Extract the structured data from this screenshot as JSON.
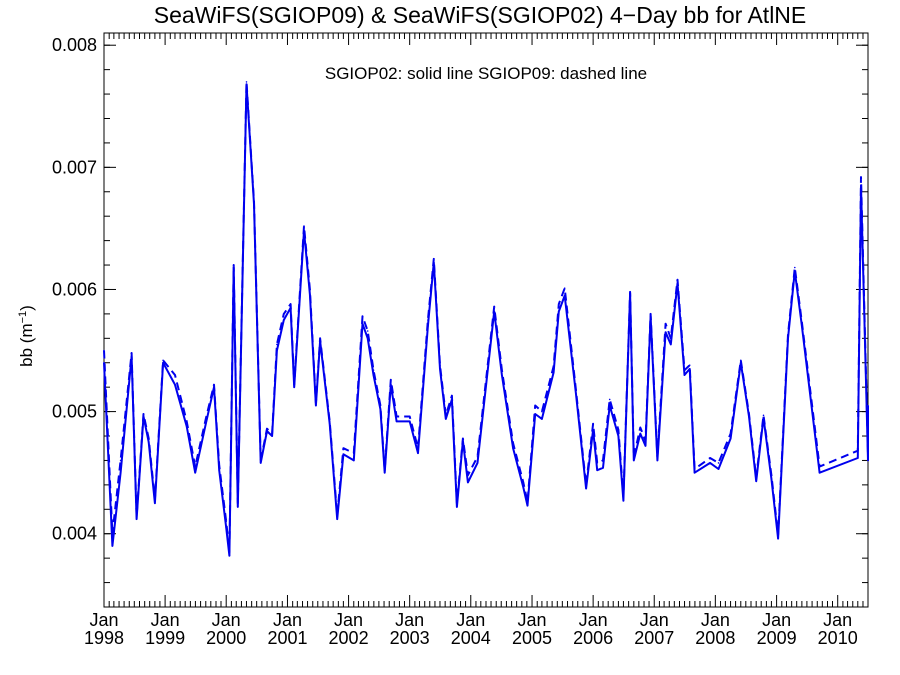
{
  "chart_data": {
    "type": "line",
    "title": "SeaWiFS(SGIOP09) & SeaWiFS(SGIOP02) 4−Day bb for AtlNE",
    "annotation": "SGIOP02: solid line   SGIOP09: dashed line",
    "ylabel_main": "bb (m",
    "ylabel_sup": "−1",
    "ylabel_close": ")",
    "xlim": [
      "1998-01-01",
      "2010-07-01"
    ],
    "ylim": [
      0.0034,
      0.0081
    ],
    "y_ticks": [
      0.004,
      0.005,
      0.006,
      0.007,
      0.008
    ],
    "y_tick_labels": [
      "0.004",
      "0.005",
      "0.006",
      "0.007",
      "0.008"
    ],
    "x_ticks": [
      {
        "date": "1998-01-01",
        "month": "Jan",
        "year": "1998"
      },
      {
        "date": "1999-01-01",
        "month": "Jan",
        "year": "1999"
      },
      {
        "date": "2000-01-01",
        "month": "Jan",
        "year": "2000"
      },
      {
        "date": "2001-01-01",
        "month": "Jan",
        "year": "2001"
      },
      {
        "date": "2002-01-01",
        "month": "Jan",
        "year": "2002"
      },
      {
        "date": "2003-01-01",
        "month": "Jan",
        "year": "2003"
      },
      {
        "date": "2004-01-01",
        "month": "Jan",
        "year": "2004"
      },
      {
        "date": "2005-01-01",
        "month": "Jan",
        "year": "2005"
      },
      {
        "date": "2006-01-01",
        "month": "Jan",
        "year": "2006"
      },
      {
        "date": "2007-01-01",
        "month": "Jan",
        "year": "2007"
      },
      {
        "date": "2008-01-01",
        "month": "Jan",
        "year": "2008"
      },
      {
        "date": "2009-01-01",
        "month": "Jan",
        "year": "2009"
      },
      {
        "date": "2010-01-01",
        "month": "Jan",
        "year": "2010"
      }
    ],
    "line_color": "#0000ee",
    "series": [
      {
        "name": "SGIOP02",
        "style": "solid",
        "points": [
          [
            "1998-01-01",
            0.0054
          ],
          [
            "1998-02-20",
            0.0039
          ],
          [
            "1998-04-10",
            0.0045
          ],
          [
            "1998-06-15",
            0.00545
          ],
          [
            "1998-07-15",
            0.00412
          ],
          [
            "1998-08-25",
            0.00496
          ],
          [
            "1998-09-25",
            0.00475
          ],
          [
            "1998-11-01",
            0.00425
          ],
          [
            "1998-12-20",
            0.0054
          ],
          [
            "1999-03-01",
            0.00522
          ],
          [
            "1999-05-10",
            0.00488
          ],
          [
            "1999-06-30",
            0.0045
          ],
          [
            "1999-09-01",
            0.0049
          ],
          [
            "1999-10-20",
            0.0052
          ],
          [
            "1999-11-20",
            0.00452
          ],
          [
            "2000-01-01",
            0.00405
          ],
          [
            "2000-01-20",
            0.00382
          ],
          [
            "2000-02-15",
            0.00618
          ],
          [
            "2000-03-10",
            0.00422
          ],
          [
            "2000-05-01",
            0.00768
          ],
          [
            "2000-06-15",
            0.0067
          ],
          [
            "2000-07-25",
            0.00458
          ],
          [
            "2000-09-01",
            0.00484
          ],
          [
            "2000-10-01",
            0.0048
          ],
          [
            "2000-10-30",
            0.0055
          ],
          [
            "2000-12-10",
            0.00575
          ],
          [
            "2001-01-20",
            0.00585
          ],
          [
            "2001-02-10",
            0.0052
          ],
          [
            "2001-04-10",
            0.00648
          ],
          [
            "2001-05-15",
            0.00596
          ],
          [
            "2001-06-20",
            0.00505
          ],
          [
            "2001-07-15",
            0.00558
          ],
          [
            "2001-09-10",
            0.0049
          ],
          [
            "2001-10-25",
            0.00412
          ],
          [
            "2001-12-01",
            0.00465
          ],
          [
            "2002-02-01",
            0.0046
          ],
          [
            "2002-03-25",
            0.00572
          ],
          [
            "2002-04-25",
            0.0056
          ],
          [
            "2002-05-30",
            0.0053
          ],
          [
            "2002-07-10",
            0.00502
          ],
          [
            "2002-08-05",
            0.0045
          ],
          [
            "2002-09-10",
            0.00522
          ],
          [
            "2002-10-15",
            0.00492
          ],
          [
            "2003-01-01",
            0.00492
          ],
          [
            "2003-02-20",
            0.00466
          ],
          [
            "2003-04-20",
            0.0057
          ],
          [
            "2003-05-25",
            0.00622
          ],
          [
            "2003-07-01",
            0.00535
          ],
          [
            "2003-08-05",
            0.00494
          ],
          [
            "2003-09-10",
            0.0051
          ],
          [
            "2003-10-10",
            0.00422
          ],
          [
            "2003-11-15",
            0.00476
          ],
          [
            "2003-12-15",
            0.00442
          ],
          [
            "2004-02-10",
            0.00458
          ],
          [
            "2004-05-20",
            0.00582
          ],
          [
            "2004-07-05",
            0.0053
          ],
          [
            "2004-09-10",
            0.0047
          ],
          [
            "2004-11-10",
            0.00438
          ],
          [
            "2004-12-05",
            0.00423
          ],
          [
            "2005-01-20",
            0.00498
          ],
          [
            "2005-03-01",
            0.00494
          ],
          [
            "2005-05-10",
            0.00532
          ],
          [
            "2005-06-10",
            0.00582
          ],
          [
            "2005-07-15",
            0.00595
          ],
          [
            "2005-09-20",
            0.00515
          ],
          [
            "2005-11-20",
            0.00437
          ],
          [
            "2006-01-01",
            0.00485
          ],
          [
            "2006-01-25",
            0.00452
          ],
          [
            "2006-03-01",
            0.00454
          ],
          [
            "2006-04-10",
            0.00505
          ],
          [
            "2006-06-01",
            0.0048
          ],
          [
            "2006-07-01",
            0.00427
          ],
          [
            "2006-08-10",
            0.00597
          ],
          [
            "2006-09-01",
            0.0046
          ],
          [
            "2006-10-10",
            0.00482
          ],
          [
            "2006-11-10",
            0.00472
          ],
          [
            "2006-12-10",
            0.00578
          ],
          [
            "2007-01-20",
            0.0046
          ],
          [
            "2007-03-10",
            0.00565
          ],
          [
            "2007-04-10",
            0.00555
          ],
          [
            "2007-05-20",
            0.00605
          ],
          [
            "2007-07-01",
            0.0053
          ],
          [
            "2007-08-01",
            0.00535
          ],
          [
            "2007-08-30",
            0.0045
          ],
          [
            "2007-12-01",
            0.00458
          ],
          [
            "2008-01-20",
            0.00453
          ],
          [
            "2008-04-01",
            0.00478
          ],
          [
            "2008-06-01",
            0.0054
          ],
          [
            "2008-07-20",
            0.00496
          ],
          [
            "2008-09-01",
            0.00443
          ],
          [
            "2008-10-15",
            0.00495
          ],
          [
            "2008-12-01",
            0.00445
          ],
          [
            "2009-01-10",
            0.00396
          ],
          [
            "2009-03-10",
            0.0056
          ],
          [
            "2009-04-20",
            0.00615
          ],
          [
            "2009-06-01",
            0.0057
          ],
          [
            "2009-09-15",
            0.0045
          ],
          [
            "2010-05-01",
            0.00462
          ],
          [
            "2010-05-20",
            0.00685
          ],
          [
            "2010-07-01",
            0.0046
          ],
          [
            "2010-08-01",
            0.005
          ]
        ]
      },
      {
        "name": "SGIOP09",
        "style": "dashed",
        "points": [
          [
            "1998-01-01",
            0.0055
          ],
          [
            "1998-02-20",
            0.004
          ],
          [
            "1998-04-10",
            0.0046
          ],
          [
            "1998-06-15",
            0.00548
          ],
          [
            "1998-07-15",
            0.00414
          ],
          [
            "1998-08-25",
            0.00498
          ],
          [
            "1998-09-25",
            0.00478
          ],
          [
            "1998-11-01",
            0.00428
          ],
          [
            "1998-12-20",
            0.00542
          ],
          [
            "1999-03-01",
            0.0053
          ],
          [
            "1999-05-10",
            0.00492
          ],
          [
            "1999-06-30",
            0.00455
          ],
          [
            "1999-09-01",
            0.00494
          ],
          [
            "1999-10-20",
            0.00522
          ],
          [
            "1999-11-20",
            0.00456
          ],
          [
            "2000-01-01",
            0.0041
          ],
          [
            "2000-01-20",
            0.00385
          ],
          [
            "2000-02-15",
            0.0062
          ],
          [
            "2000-03-10",
            0.00425
          ],
          [
            "2000-05-01",
            0.0077
          ],
          [
            "2000-06-15",
            0.00672
          ],
          [
            "2000-07-25",
            0.0046
          ],
          [
            "2000-09-01",
            0.00486
          ],
          [
            "2000-10-01",
            0.00482
          ],
          [
            "2000-10-30",
            0.00555
          ],
          [
            "2000-12-10",
            0.0058
          ],
          [
            "2001-01-20",
            0.00588
          ],
          [
            "2001-02-10",
            0.00522
          ],
          [
            "2001-04-10",
            0.00652
          ],
          [
            "2001-05-15",
            0.006
          ],
          [
            "2001-06-20",
            0.00507
          ],
          [
            "2001-07-15",
            0.0056
          ],
          [
            "2001-09-10",
            0.00492
          ],
          [
            "2001-10-25",
            0.00415
          ],
          [
            "2001-12-01",
            0.0047
          ],
          [
            "2002-02-01",
            0.00466
          ],
          [
            "2002-03-25",
            0.00578
          ],
          [
            "2002-04-25",
            0.00566
          ],
          [
            "2002-05-30",
            0.00534
          ],
          [
            "2002-07-10",
            0.00505
          ],
          [
            "2002-08-05",
            0.00452
          ],
          [
            "2002-09-10",
            0.00526
          ],
          [
            "2002-10-15",
            0.00496
          ],
          [
            "2003-01-01",
            0.00496
          ],
          [
            "2003-02-20",
            0.0047
          ],
          [
            "2003-04-20",
            0.00575
          ],
          [
            "2003-05-25",
            0.00625
          ],
          [
            "2003-07-01",
            0.00538
          ],
          [
            "2003-08-05",
            0.00497
          ],
          [
            "2003-09-10",
            0.00513
          ],
          [
            "2003-10-10",
            0.00425
          ],
          [
            "2003-11-15",
            0.00478
          ],
          [
            "2003-12-15",
            0.00448
          ],
          [
            "2004-02-10",
            0.00463
          ],
          [
            "2004-05-20",
            0.00586
          ],
          [
            "2004-07-05",
            0.00534
          ],
          [
            "2004-09-10",
            0.00474
          ],
          [
            "2004-11-10",
            0.00442
          ],
          [
            "2004-12-05",
            0.00426
          ],
          [
            "2005-01-20",
            0.00505
          ],
          [
            "2005-03-01",
            0.005
          ],
          [
            "2005-05-10",
            0.00537
          ],
          [
            "2005-06-10",
            0.00588
          ],
          [
            "2005-07-15",
            0.00601
          ],
          [
            "2005-09-20",
            0.00518
          ],
          [
            "2005-11-20",
            0.0044
          ],
          [
            "2006-01-01",
            0.0049
          ],
          [
            "2006-01-25",
            0.00458
          ],
          [
            "2006-03-01",
            0.0046
          ],
          [
            "2006-04-10",
            0.0051
          ],
          [
            "2006-06-01",
            0.00485
          ],
          [
            "2006-07-01",
            0.0043
          ],
          [
            "2006-08-10",
            0.00598
          ],
          [
            "2006-09-01",
            0.00463
          ],
          [
            "2006-10-10",
            0.00487
          ],
          [
            "2006-11-10",
            0.00476
          ],
          [
            "2006-12-10",
            0.0058
          ],
          [
            "2007-01-20",
            0.00463
          ],
          [
            "2007-03-10",
            0.00572
          ],
          [
            "2007-04-10",
            0.0056
          ],
          [
            "2007-05-20",
            0.00608
          ],
          [
            "2007-07-01",
            0.00534
          ],
          [
            "2007-08-01",
            0.00538
          ],
          [
            "2007-08-30",
            0.00453
          ],
          [
            "2007-12-01",
            0.00462
          ],
          [
            "2008-01-20",
            0.00458
          ],
          [
            "2008-04-01",
            0.00482
          ],
          [
            "2008-06-01",
            0.00542
          ],
          [
            "2008-07-20",
            0.00498
          ],
          [
            "2008-09-01",
            0.00446
          ],
          [
            "2008-10-15",
            0.00497
          ],
          [
            "2008-12-01",
            0.00448
          ],
          [
            "2009-01-10",
            0.00399
          ],
          [
            "2009-03-10",
            0.00563
          ],
          [
            "2009-04-20",
            0.00618
          ],
          [
            "2009-06-01",
            0.00573
          ],
          [
            "2009-09-15",
            0.00455
          ],
          [
            "2010-05-01",
            0.00468
          ],
          [
            "2010-05-20",
            0.00692
          ],
          [
            "2010-07-01",
            0.00465
          ],
          [
            "2010-08-01",
            0.00505
          ]
        ]
      }
    ]
  }
}
